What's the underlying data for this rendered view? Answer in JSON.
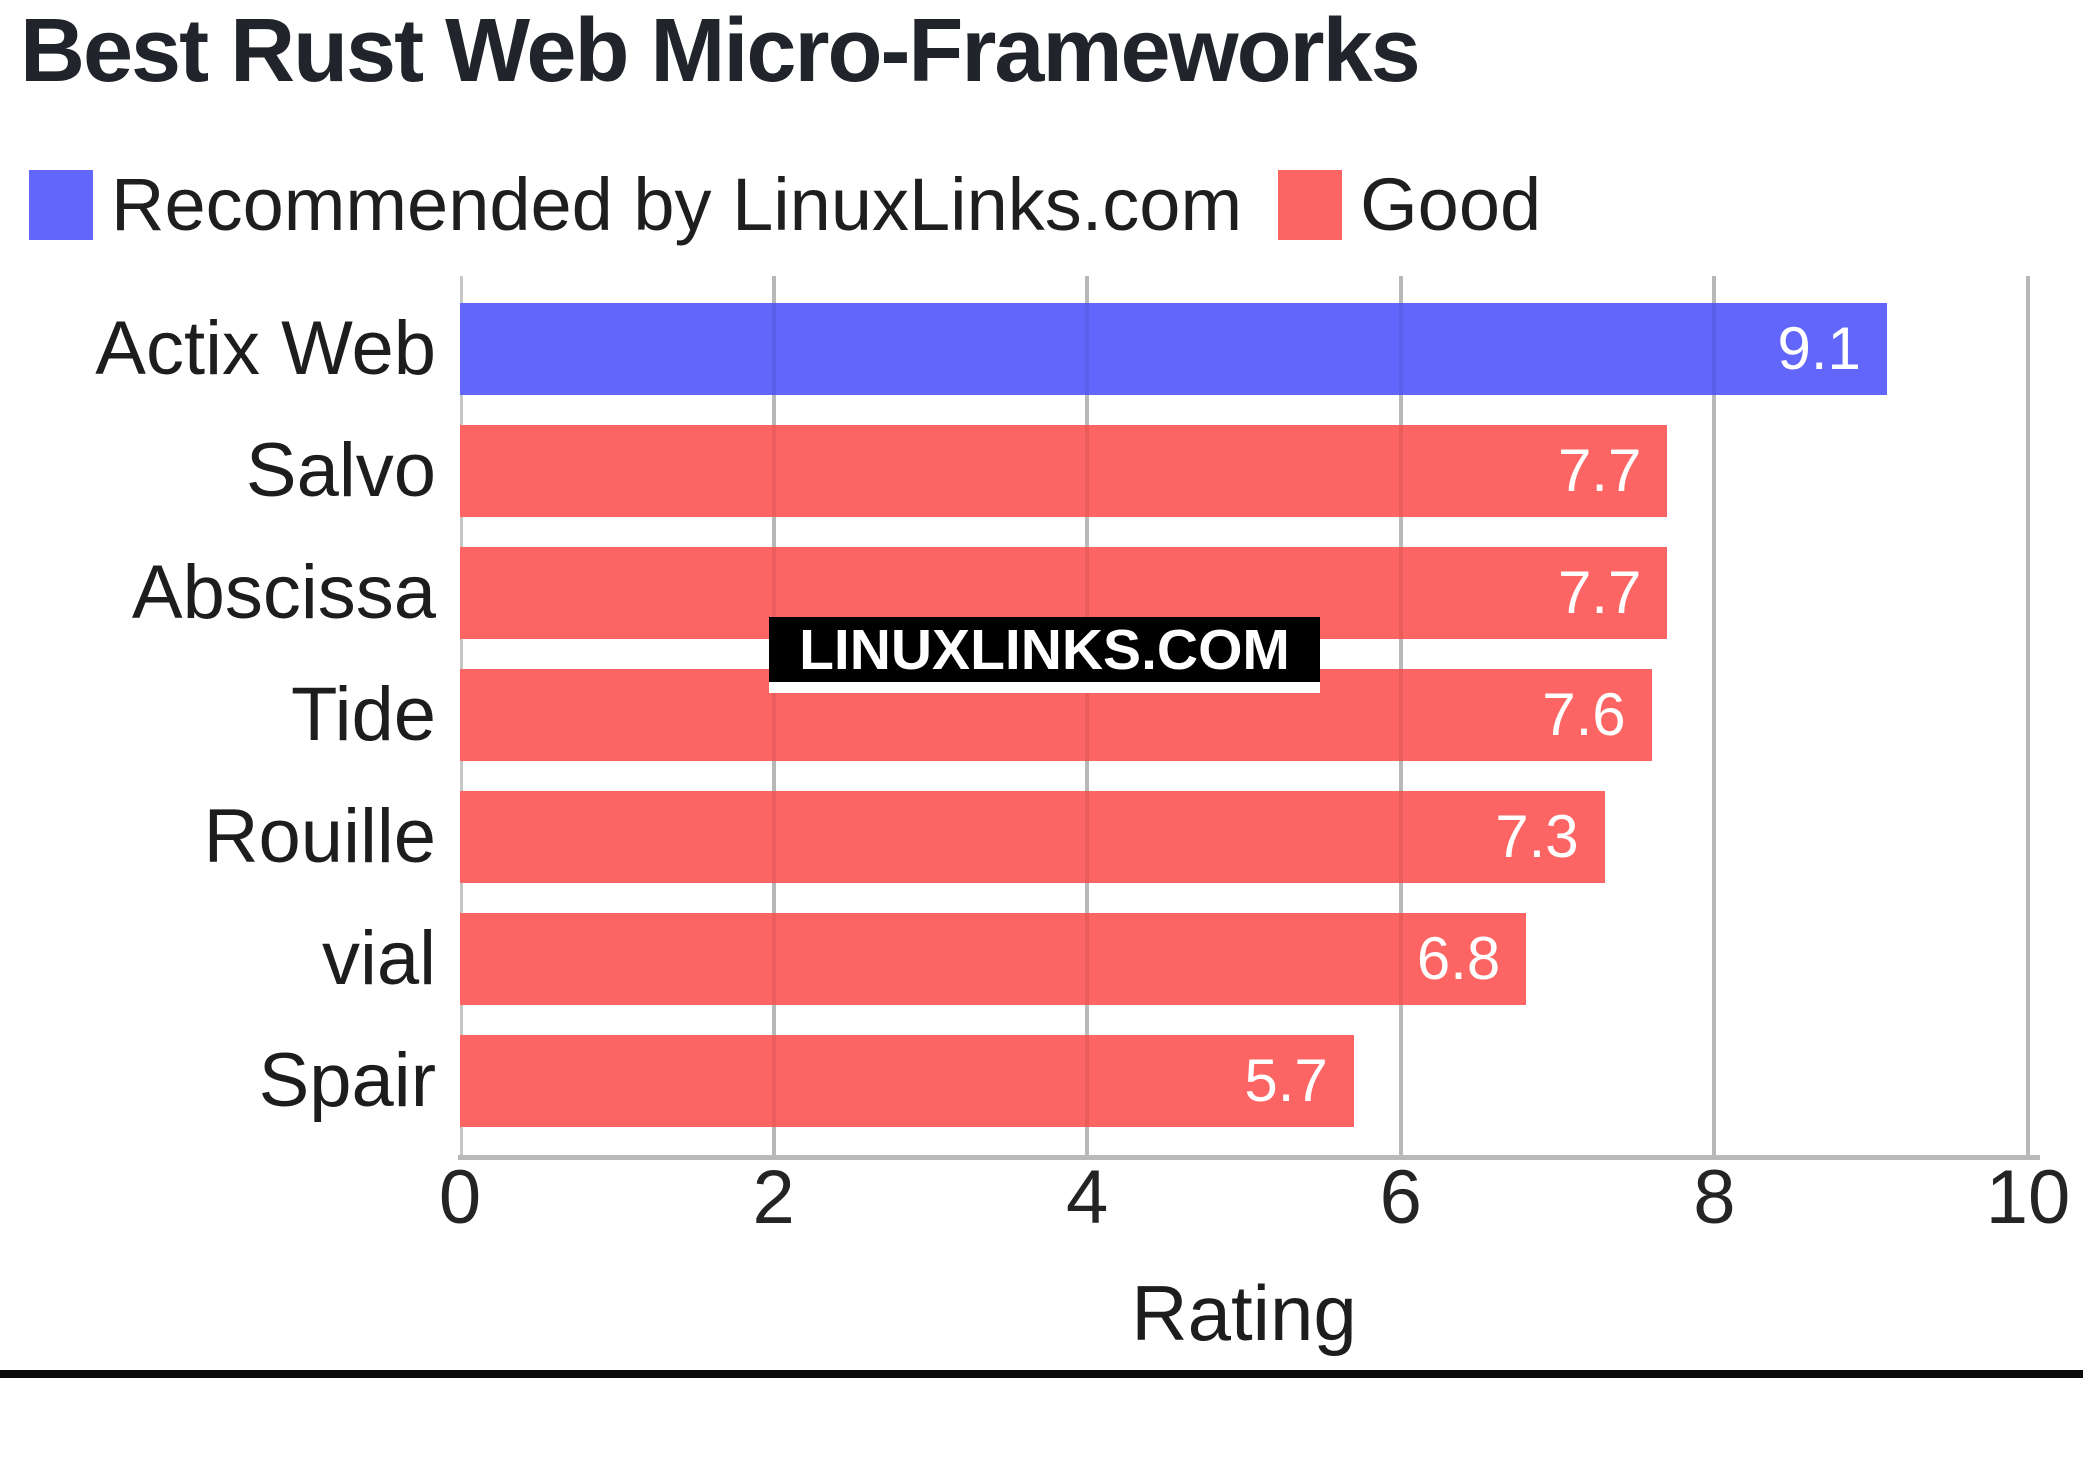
{
  "title": "Best Rust Web Micro-Frameworks",
  "legend": {
    "items": [
      {
        "label": "Recommended by LinuxLinks.com",
        "color": "#6266fb"
      },
      {
        "label": "Good",
        "color": "#fd6564"
      }
    ]
  },
  "watermark": "LINUXLINKS.COM",
  "chart_data": {
    "type": "bar",
    "orientation": "horizontal",
    "title": "Best Rust Web Micro-Frameworks",
    "categories": [
      "Actix Web",
      "Salvo",
      "Abscissa",
      "Tide",
      "Rouille",
      "vial",
      "Spair"
    ],
    "values": [
      9.1,
      7.7,
      7.7,
      7.6,
      7.3,
      6.8,
      5.7
    ],
    "bar_series": [
      "Recommended by LinuxLinks.com",
      "Good",
      "Good",
      "Good",
      "Good",
      "Good",
      "Good"
    ],
    "series_colors": {
      "Recommended by LinuxLinks.com": "#6266fb",
      "Good": "#fd6564"
    },
    "xlabel": "Rating",
    "xlim": [
      0,
      10
    ],
    "xticks": [
      0,
      2,
      4,
      6,
      8,
      10
    ],
    "grid": true,
    "gridline_color": "#c7c7c7",
    "value_label_color": "#ffffff",
    "legend_position": "top"
  }
}
